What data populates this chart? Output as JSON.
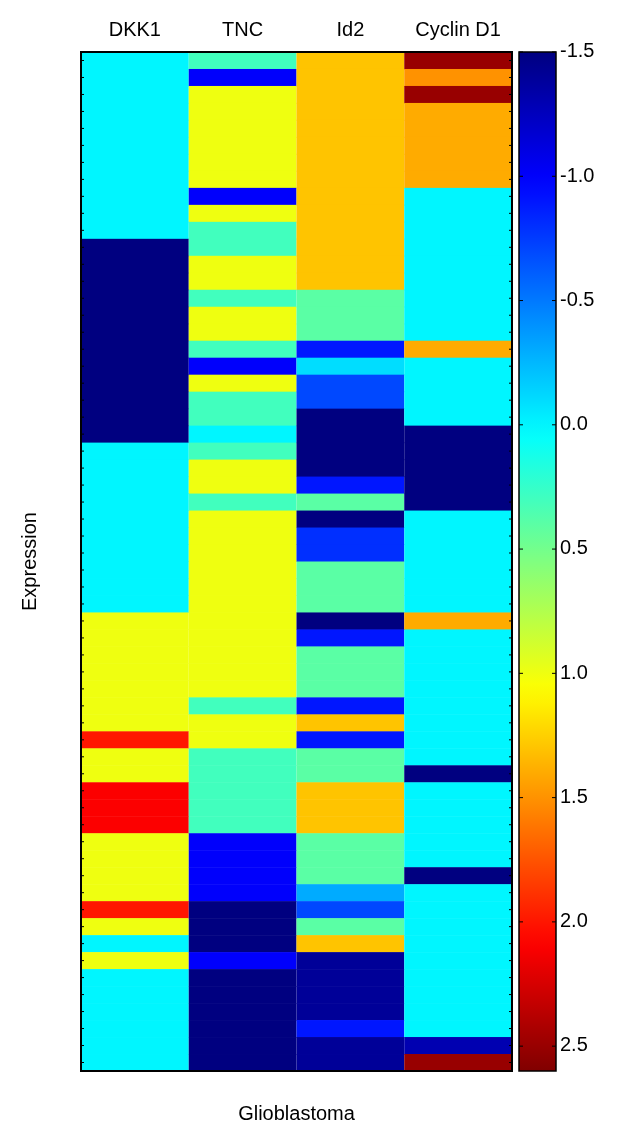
{
  "chart_data": {
    "type": "heatmap",
    "xlabel": "Glioblastoma",
    "ylabel": "Expression",
    "categories": [
      "DKK1",
      "TNC",
      "Id2",
      "Cyclin D1"
    ],
    "y_categories": [
      null,
      null,
      null,
      null,
      null,
      null,
      null,
      null,
      null,
      null,
      null,
      null,
      null,
      null,
      null,
      null,
      null,
      null,
      null,
      null,
      null,
      null,
      null,
      null,
      null,
      null,
      null,
      null,
      null,
      null,
      null,
      null,
      null,
      null,
      null,
      null,
      null,
      null,
      null,
      null,
      null,
      null,
      null,
      null,
      null,
      null,
      null,
      null,
      null,
      null,
      null,
      null,
      null,
      null,
      null,
      null,
      null,
      null,
      null,
      null
    ],
    "clim": [
      -1.5,
      2.6
    ],
    "cticks": [
      -1.5,
      {
        "value": -1,
        "label": "-1.0"
      },
      -0.5,
      {
        "value": 0,
        "label": "0.0"
      },
      0.5,
      {
        "value": 1,
        "label": "1.0"
      },
      1.5,
      {
        "value": 2,
        "label": "2.0"
      },
      2.5
    ],
    "cells": [
      [
        0,
        0.3,
        1.3,
        2.5
      ],
      [
        0,
        -1.0,
        1.3,
        1.5
      ],
      [
        0,
        1.0,
        1.3,
        2.5
      ],
      [
        0,
        1.0,
        1.3,
        1.4
      ],
      [
        0,
        1.0,
        1.3,
        1.4
      ],
      [
        0,
        1.0,
        1.3,
        1.4
      ],
      [
        0,
        1.0,
        1.3,
        1.4
      ],
      [
        0,
        1.0,
        1.3,
        1.4
      ],
      [
        0,
        -1.0,
        1.3,
        0
      ],
      [
        0,
        1.0,
        1.3,
        0
      ],
      [
        0,
        0.3,
        1.3,
        0
      ],
      [
        -1.5,
        0.3,
        1.3,
        0
      ],
      [
        -1.5,
        1.0,
        1.3,
        0
      ],
      [
        -1.5,
        1.0,
        1.3,
        0
      ],
      [
        -1.5,
        0.3,
        0.4,
        0
      ],
      [
        -1.5,
        1.0,
        0.4,
        0
      ],
      [
        -1.5,
        1.0,
        0.4,
        0
      ],
      [
        -1.5,
        0.3,
        -0.9,
        1.4
      ],
      [
        -1.5,
        -1.0,
        -0.1,
        0
      ],
      [
        -1.5,
        1.0,
        -0.7,
        0
      ],
      [
        -1.5,
        0.3,
        -0.7,
        0
      ],
      [
        -1.5,
        0.3,
        -1.5,
        0
      ],
      [
        -1.5,
        0,
        -1.5,
        -1.5
      ],
      [
        0,
        0.3,
        -1.5,
        -1.5
      ],
      [
        0,
        1.0,
        -1.5,
        -1.5
      ],
      [
        0,
        1.0,
        -0.9,
        -1.5
      ],
      [
        0,
        0.3,
        0.4,
        -1.5
      ],
      [
        0,
        1.0,
        -1.5,
        0
      ],
      [
        0,
        1.0,
        -0.8,
        0
      ],
      [
        0,
        1.0,
        -0.8,
        0
      ],
      [
        0,
        1.0,
        0.4,
        0
      ],
      [
        0,
        1.0,
        0.4,
        0
      ],
      [
        0,
        1.0,
        0.4,
        0
      ],
      [
        1.0,
        1.0,
        -1.5,
        1.4
      ],
      [
        1.0,
        1.0,
        -0.9,
        0
      ],
      [
        1.0,
        1.0,
        0.4,
        0
      ],
      [
        1.0,
        1.0,
        0.4,
        0
      ],
      [
        1.0,
        1.0,
        0.4,
        0
      ],
      [
        1.0,
        0.3,
        -0.9,
        0
      ],
      [
        1.0,
        1.0,
        1.3,
        0
      ],
      [
        2.0,
        1.0,
        -0.9,
        0
      ],
      [
        1.0,
        0.3,
        0.4,
        0
      ],
      [
        1.0,
        0.3,
        0.4,
        -1.5
      ],
      [
        2.1,
        0.3,
        1.3,
        0
      ],
      [
        2.1,
        0.3,
        1.3,
        0
      ],
      [
        2.1,
        0.3,
        1.3,
        0
      ],
      [
        1.0,
        -1.0,
        0.4,
        0
      ],
      [
        1.0,
        -1.0,
        0.4,
        0
      ],
      [
        1.0,
        -1.0,
        0.4,
        -1.5
      ],
      [
        1.0,
        -1.0,
        -0.3,
        0
      ],
      [
        2.0,
        -1.5,
        -0.7,
        0
      ],
      [
        1.0,
        -1.5,
        0.4,
        0
      ],
      [
        0,
        -1.5,
        1.3,
        0
      ],
      [
        1.0,
        -1.0,
        -1.4,
        0
      ],
      [
        0,
        -1.5,
        -1.4,
        0
      ],
      [
        0,
        -1.5,
        -1.4,
        0
      ],
      [
        0,
        -1.5,
        -1.4,
        0
      ],
      [
        0,
        -1.5,
        -0.9,
        0
      ],
      [
        0,
        -1.5,
        -1.4,
        -1.3
      ],
      [
        0,
        -1.5,
        -1.4,
        2.5
      ]
    ]
  }
}
